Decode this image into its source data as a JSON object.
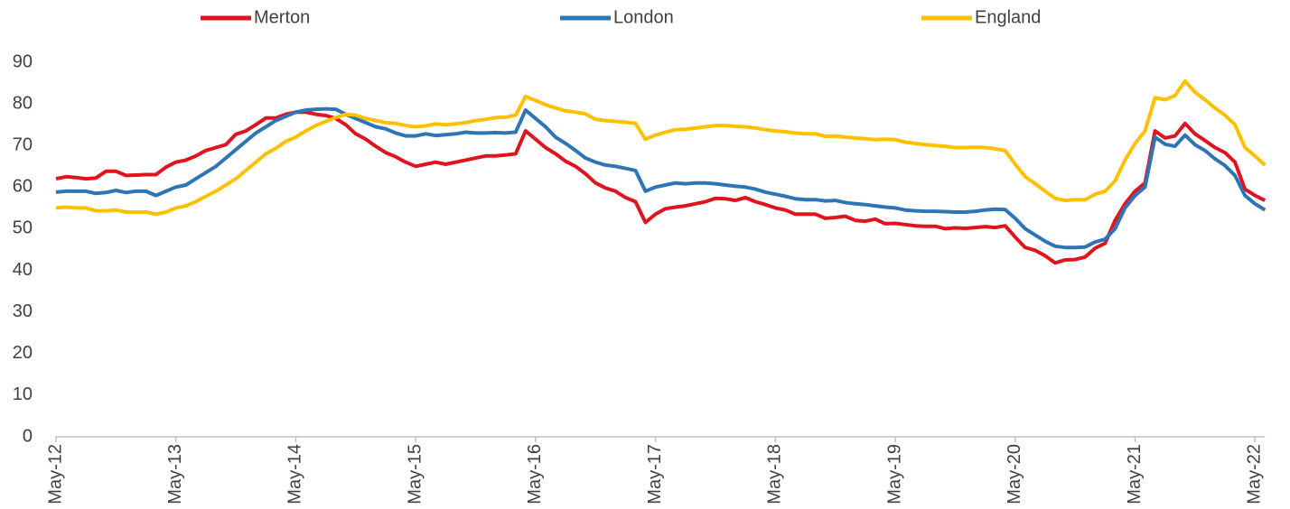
{
  "chart_data": {
    "type": "line",
    "categories": [
      "May-12",
      null,
      null,
      null,
      null,
      null,
      null,
      null,
      null,
      null,
      null,
      null,
      "May-13",
      null,
      null,
      null,
      null,
      null,
      null,
      null,
      null,
      null,
      null,
      null,
      "May-14",
      null,
      null,
      null,
      null,
      null,
      null,
      null,
      null,
      null,
      null,
      null,
      "May-15",
      null,
      null,
      null,
      null,
      null,
      null,
      null,
      null,
      null,
      null,
      null,
      "May-16",
      null,
      null,
      null,
      null,
      null,
      null,
      null,
      null,
      null,
      null,
      null,
      "May-17",
      null,
      null,
      null,
      null,
      null,
      null,
      null,
      null,
      null,
      null,
      null,
      "May-18",
      null,
      null,
      null,
      null,
      null,
      null,
      null,
      null,
      null,
      null,
      null,
      "May-19",
      null,
      null,
      null,
      null,
      null,
      null,
      null,
      null,
      null,
      null,
      null,
      "May-20",
      null,
      null,
      null,
      null,
      null,
      null,
      null,
      null,
      null,
      null,
      null,
      "May-21",
      null,
      null,
      null,
      null,
      null,
      null,
      null,
      null,
      null,
      null,
      null,
      "May-22",
      null
    ],
    "series": [
      {
        "name": "Merton",
        "color": "#e0141e",
        "values": [
          62,
          62.5,
          62.3,
          62,
          62.2,
          63.8,
          63.8,
          62.8,
          62.9,
          63,
          63,
          64.8,
          66,
          66.5,
          67.5,
          68.8,
          69.5,
          70.2,
          72.7,
          73.5,
          75,
          76.6,
          76.6,
          77.5,
          78,
          78,
          77.5,
          77.2,
          76.5,
          75,
          72.8,
          71.5,
          69.8,
          68.3,
          67.3,
          66,
          65,
          65.5,
          66,
          65.5,
          66,
          66.5,
          67,
          67.5,
          67.5,
          67.7,
          68,
          73.5,
          71.5,
          69.5,
          68,
          66.2,
          65,
          63.2,
          61,
          59.8,
          59,
          57.5,
          56.5,
          51.5,
          53.5,
          54.8,
          55.2,
          55.5,
          56,
          56.5,
          57.3,
          57.2,
          56.8,
          57.5,
          56.5,
          55.8,
          55,
          54.5,
          53.5,
          53.5,
          53.5,
          52.5,
          52.7,
          53,
          52,
          51.8,
          52.3,
          51.2,
          51.3,
          51,
          50.7,
          50.6,
          50.6,
          50,
          50.2,
          50.1,
          50.3,
          50.5,
          50.3,
          50.7,
          48,
          45.5,
          44.8,
          43.5,
          41.8,
          42.5,
          42.6,
          43.2,
          45.3,
          46.5,
          52,
          56,
          59,
          61,
          73.5,
          71.8,
          72.3,
          75.3,
          72.8,
          71.2,
          69.5,
          68.3,
          66,
          59.5,
          58,
          56.8
        ]
      },
      {
        "name": "London",
        "color": "#2e75b6",
        "values": [
          58.8,
          59,
          59,
          59,
          58.5,
          58.7,
          59.2,
          58.7,
          59,
          59,
          58,
          59,
          60,
          60.5,
          62,
          63.5,
          65,
          67,
          69,
          71,
          73,
          74.5,
          76,
          77,
          78,
          78.5,
          78.7,
          78.8,
          78.7,
          77.5,
          76.5,
          75.5,
          74.5,
          74,
          73,
          72.3,
          72.3,
          72.8,
          72.4,
          72.6,
          72.8,
          73.2,
          73,
          73,
          73.1,
          73,
          73.2,
          78.5,
          76.5,
          74.5,
          72,
          70.5,
          68.8,
          67,
          66,
          65.3,
          65,
          64.5,
          64,
          59,
          60,
          60.5,
          61,
          60.8,
          61,
          61,
          60.8,
          60.5,
          60.2,
          60,
          59.5,
          58.8,
          58.3,
          57.8,
          57.2,
          57,
          57,
          56.7,
          56.8,
          56.3,
          56,
          55.8,
          55.5,
          55.2,
          55,
          54.5,
          54.3,
          54.2,
          54.2,
          54.1,
          54,
          54,
          54.2,
          54.5,
          54.7,
          54.6,
          52.5,
          50,
          48.5,
          47,
          45.8,
          45.5,
          45.5,
          45.6,
          46.8,
          47.5,
          50,
          55,
          58,
          60,
          72,
          70.3,
          69.8,
          72.5,
          70.2,
          68.8,
          66.8,
          65.2,
          62.8,
          58,
          56,
          54.5
        ]
      },
      {
        "name": "England",
        "color": "#ffc000",
        "values": [
          55,
          55.2,
          55,
          55,
          54.3,
          54.3,
          54.5,
          54,
          54,
          54,
          53.5,
          54,
          55,
          55.5,
          56.5,
          57.8,
          59,
          60.5,
          62,
          64,
          66,
          68,
          69.3,
          71,
          72,
          73.5,
          74.8,
          75.8,
          76.7,
          77.5,
          77.3,
          76.5,
          76,
          75.5,
          75.3,
          74.8,
          74.5,
          74.7,
          75.2,
          75,
          75.2,
          75.5,
          76,
          76.3,
          76.7,
          76.8,
          77.3,
          81.8,
          80.8,
          79.8,
          79,
          78.3,
          78,
          77.6,
          76.3,
          76,
          75.8,
          75.6,
          75.3,
          71.5,
          72.5,
          73.2,
          73.8,
          73.9,
          74.2,
          74.5,
          74.8,
          74.8,
          74.6,
          74.5,
          74.2,
          73.8,
          73.5,
          73.3,
          73,
          72.8,
          72.8,
          72.2,
          72.3,
          72,
          71.8,
          71.6,
          71.4,
          71.5,
          71.4,
          70.8,
          70.5,
          70.2,
          70,
          69.8,
          69.5,
          69.5,
          69.6,
          69.5,
          69.2,
          68.8,
          65.5,
          62.5,
          60.8,
          59,
          57.3,
          56.8,
          57,
          57,
          58.3,
          59,
          61.5,
          66.5,
          70.5,
          73.5,
          81.5,
          81,
          82,
          85.5,
          82.8,
          81,
          79,
          77.3,
          75,
          69.5,
          67.5,
          65.3
        ]
      }
    ],
    "ylim": [
      0,
      90
    ],
    "yticks": [
      0,
      10,
      20,
      30,
      40,
      50,
      60,
      70,
      80,
      90
    ],
    "grid": false,
    "legend": "top"
  }
}
